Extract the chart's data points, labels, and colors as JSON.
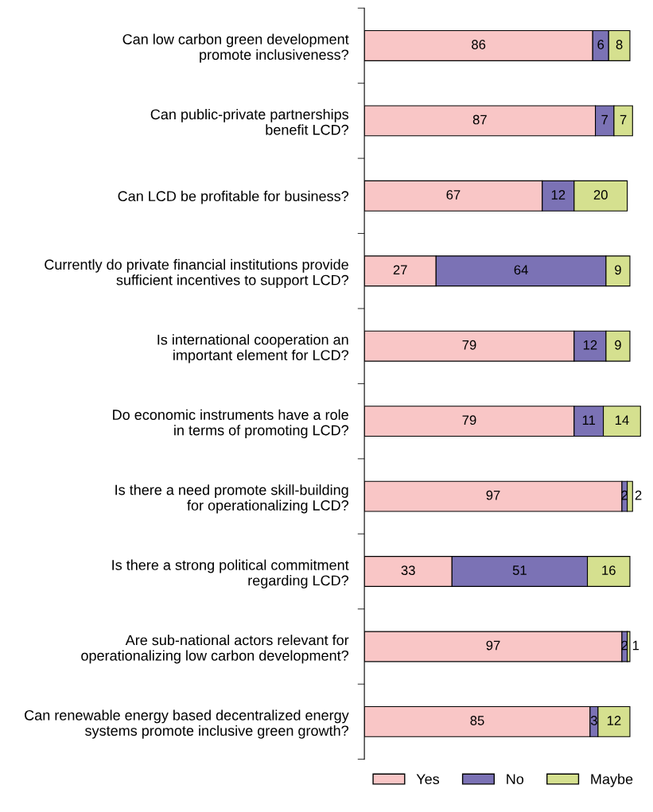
{
  "chart_data": {
    "type": "bar",
    "orientation": "horizontal",
    "stacked": true,
    "data_labels": true,
    "legend": "bottom",
    "grid": false,
    "categories": [
      "Can low carbon green development\npromote inclusiveness?",
      "Can public-private partnerships\nbenefit LCD?",
      "Can LCD be profitable for business?",
      "Currently do private financial institutions provide\nsufficient incentives to support LCD?",
      "Is international cooperation an\nimportant element for LCD?",
      "Do economic instruments have a role\nin terms of promoting LCD?",
      "Is there a need promote skill-building\nfor operationalizing LCD?",
      "Is there a strong political commitment\nregarding LCD?",
      "Are sub-national actors relevant for\noperationalizing low carbon development?",
      "Can renewable energy based decentralized energy\nsystems promote inclusive green growth?"
    ],
    "series": [
      {
        "name": "Yes",
        "color": "#f9c6c6",
        "values": [
          86,
          87,
          67,
          27,
          79,
          79,
          97,
          33,
          97,
          85
        ]
      },
      {
        "name": "No",
        "color": "#7b72b5",
        "values": [
          6,
          7,
          12,
          64,
          12,
          11,
          2,
          51,
          2,
          3
        ]
      },
      {
        "name": "Maybe",
        "color": "#d5e08f",
        "values": [
          8,
          7,
          20,
          9,
          9,
          14,
          2,
          16,
          1,
          12
        ]
      }
    ]
  }
}
